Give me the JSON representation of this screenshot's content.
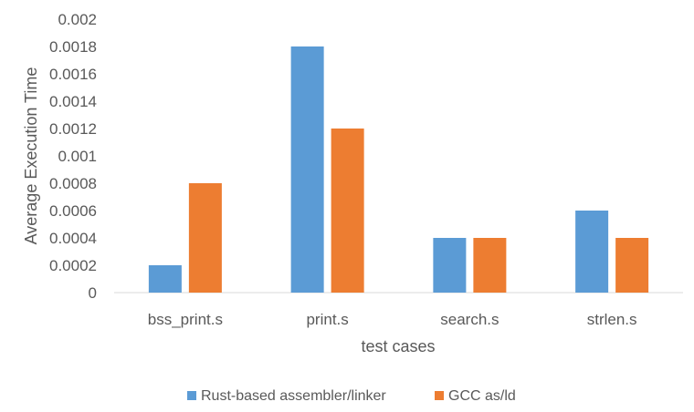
{
  "chart_data": {
    "type": "bar",
    "title": "",
    "xlabel": "test cases",
    "ylabel": "Average Execution Time",
    "categories": [
      "bss_print.s",
      "print.s",
      "search.s",
      "strlen.s"
    ],
    "series": [
      {
        "name": "Rust-based assembler/linker",
        "color": "#5b9bd5",
        "values": [
          0.0002,
          0.0018,
          0.0004,
          0.0006
        ]
      },
      {
        "name": "GCC as/ld",
        "color": "#ed7d31",
        "values": [
          0.0008,
          0.0012,
          0.0004,
          0.0004
        ]
      }
    ],
    "ylim": [
      0,
      0.002
    ],
    "yticks": [
      "0",
      "0.0002",
      "0.0004",
      "0.0006",
      "0.0008",
      "0.001",
      "0.0012",
      "0.0014",
      "0.0016",
      "0.0018",
      "0.002"
    ],
    "grid": false,
    "legend": "bottom"
  }
}
